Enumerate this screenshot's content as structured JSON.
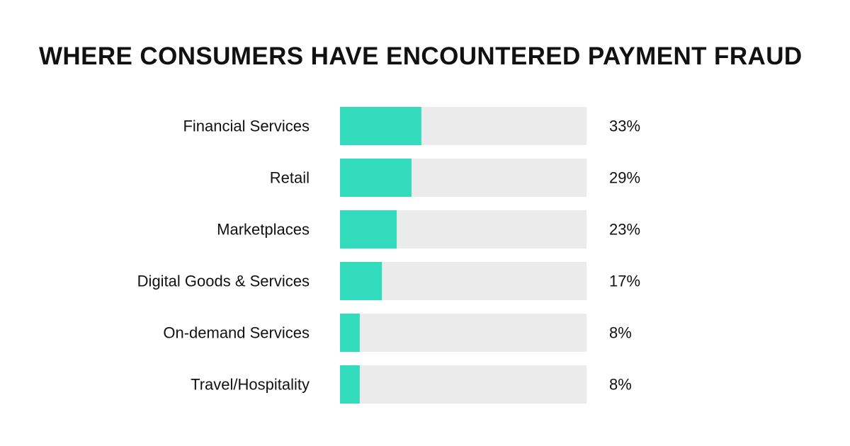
{
  "colors": {
    "bar_fill": "#31dbbb",
    "track": "#ebebeb",
    "text": "#111111",
    "background": "#ffffff"
  },
  "chart_data": {
    "type": "bar",
    "orientation": "horizontal",
    "title": "WHERE CONSUMERS HAVE ENCOUNTERED PAYMENT FRAUD",
    "categories": [
      "Financial Services",
      "Retail",
      "Marketplaces",
      "Digital Goods & Services",
      "On-demand Services",
      "Travel/Hospitality"
    ],
    "values": [
      33,
      29,
      23,
      17,
      8,
      8
    ],
    "value_labels": [
      "33%",
      "29%",
      "23%",
      "17%",
      "8%",
      "8%"
    ],
    "unit": "%",
    "xlim": [
      0,
      100
    ],
    "grid": false,
    "legend": "none"
  }
}
